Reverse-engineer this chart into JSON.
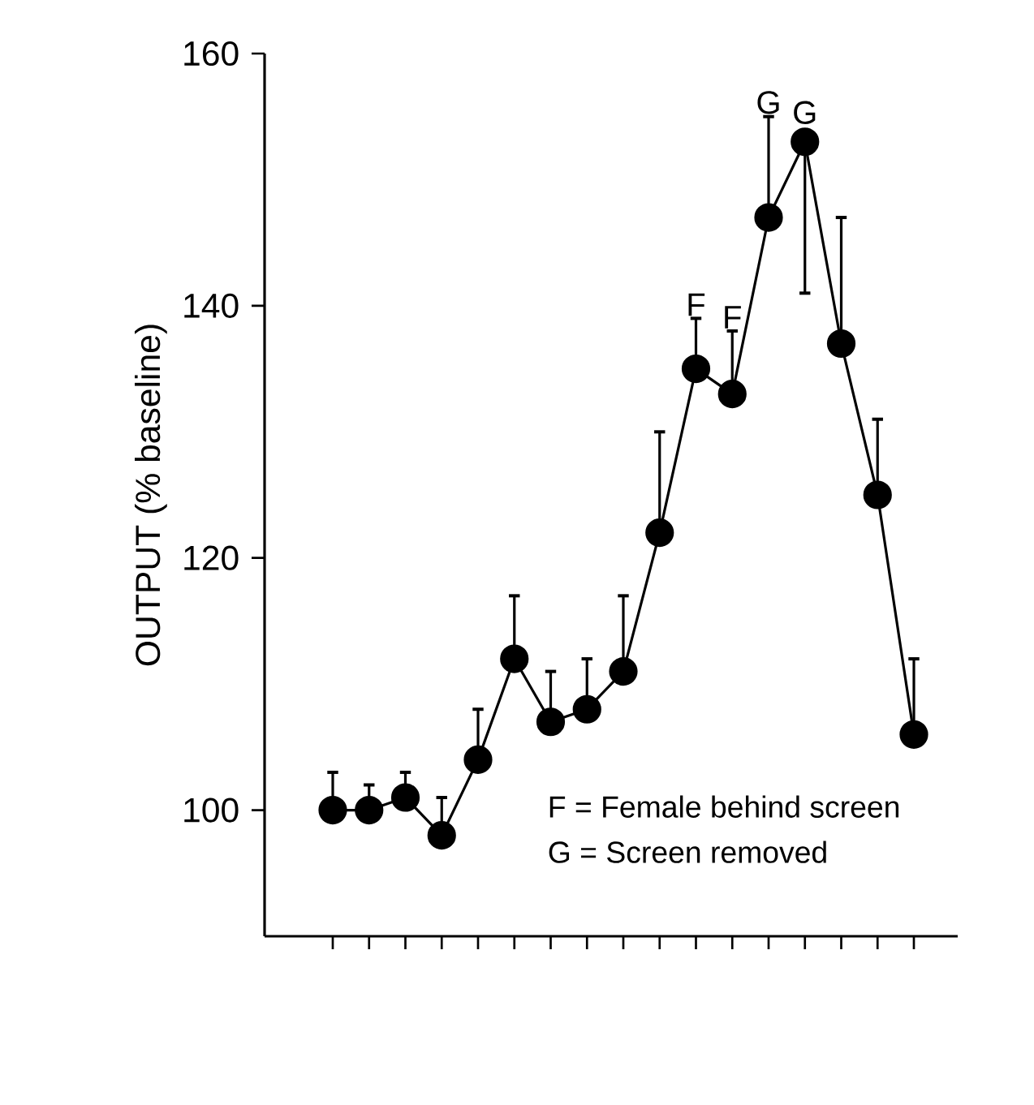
{
  "chart_data": {
    "type": "line",
    "ylabel": "OUTPUT (% baseline)",
    "categories": [
      null,
      null,
      null,
      null,
      null,
      null,
      null,
      null,
      null,
      null,
      null,
      null,
      null,
      null,
      null,
      null,
      null
    ],
    "series": [
      {
        "color": "#000000",
        "values": [
          100,
          100,
          101,
          98,
          104,
          112,
          107,
          108,
          111,
          122,
          135,
          133,
          147,
          153,
          137,
          125,
          106
        ],
        "errors": [
          [
            100,
            103
          ],
          [
            100,
            102
          ],
          [
            101,
            103
          ],
          [
            98,
            101
          ],
          [
            104,
            108
          ],
          [
            112,
            117
          ],
          [
            107,
            111
          ],
          [
            108,
            112
          ],
          [
            111,
            117
          ],
          [
            122,
            130
          ],
          [
            135,
            139
          ],
          [
            133,
            138
          ],
          [
            147,
            155
          ],
          [
            141,
            153
          ],
          [
            137,
            147
          ],
          [
            125,
            131
          ],
          [
            106,
            112
          ]
        ],
        "value_labels": [
          null,
          null,
          null,
          null,
          null,
          null,
          null,
          null,
          null,
          null,
          "F",
          "F",
          "G",
          "G",
          null,
          null,
          null
        ]
      }
    ],
    "ylim": [
      90,
      160
    ],
    "yticks": [
      100,
      120,
      140,
      160
    ],
    "tick_labels": "y",
    "marker": "circle",
    "line_style": "solid",
    "grid": false,
    "annotations": [
      "F = Female behind screen",
      "G = Screen removed"
    ]
  }
}
